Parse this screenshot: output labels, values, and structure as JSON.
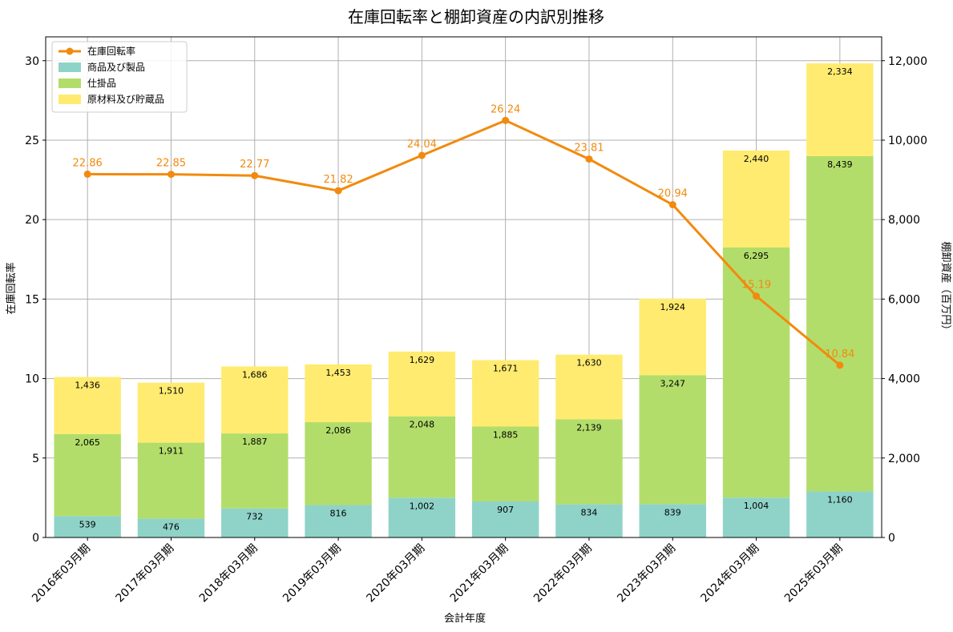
{
  "chart_data": {
    "type": "bar",
    "title": "在庫回転率と棚卸資産の内訳別推移",
    "xlabel": "会計年度",
    "ylabel_left": "在庫回転率",
    "ylabel_right": "棚卸資産（百万円）",
    "categories": [
      "2016年03月期",
      "2017年03月期",
      "2018年03月期",
      "2019年03月期",
      "2020年03月期",
      "2021年03月期",
      "2022年03月期",
      "2023年03月期",
      "2024年03月期",
      "2025年03月期"
    ],
    "ylim_left": [
      0,
      31.5
    ],
    "ylim_right": [
      0,
      12600
    ],
    "yticks_left": [
      0,
      5,
      10,
      15,
      20,
      25,
      30
    ],
    "yticks_right": [
      0,
      2000,
      4000,
      6000,
      8000,
      10000,
      12000
    ],
    "yticks_right_labels": [
      "0",
      "2,000",
      "4,000",
      "6,000",
      "8,000",
      "10,000",
      "12,000"
    ],
    "grid": true,
    "legend_position": "top-left",
    "series": [
      {
        "name": "商品及び製品",
        "kind": "bar",
        "axis": "right",
        "color": "#8fd3c8",
        "values": [
          539,
          476,
          732,
          816,
          1002,
          907,
          834,
          839,
          1004,
          1160
        ],
        "labels": [
          "539",
          "476",
          "732",
          "816",
          "1,002",
          "907",
          "834",
          "839",
          "1,004",
          "1,160"
        ]
      },
      {
        "name": "仕掛品",
        "kind": "bar",
        "axis": "right",
        "color": "#b3dd6a",
        "values": [
          2065,
          1911,
          1887,
          2086,
          2048,
          1885,
          2139,
          3247,
          6295,
          8439
        ],
        "labels": [
          "2,065",
          "1,911",
          "1,887",
          "2,086",
          "2,048",
          "1,885",
          "2,139",
          "3,247",
          "6,295",
          "8,439"
        ]
      },
      {
        "name": "原材料及び貯蔵品",
        "kind": "bar",
        "axis": "right",
        "color": "#ffeb70",
        "values": [
          1436,
          1510,
          1686,
          1453,
          1629,
          1671,
          1630,
          1924,
          2440,
          2334
        ],
        "labels": [
          "1,436",
          "1,510",
          "1,686",
          "1,453",
          "1,629",
          "1,671",
          "1,630",
          "1,924",
          "2,440",
          "2,334"
        ]
      },
      {
        "name": "在庫回転率",
        "kind": "line",
        "axis": "left",
        "color": "#f28a0e",
        "values": [
          22.86,
          22.85,
          22.77,
          21.82,
          24.04,
          26.24,
          23.81,
          20.94,
          15.19,
          10.84
        ],
        "labels": [
          "22.86",
          "22.85",
          "22.77",
          "21.82",
          "24.04",
          "26.24",
          "23.81",
          "20.94",
          "15.19",
          "10.84"
        ]
      }
    ]
  }
}
